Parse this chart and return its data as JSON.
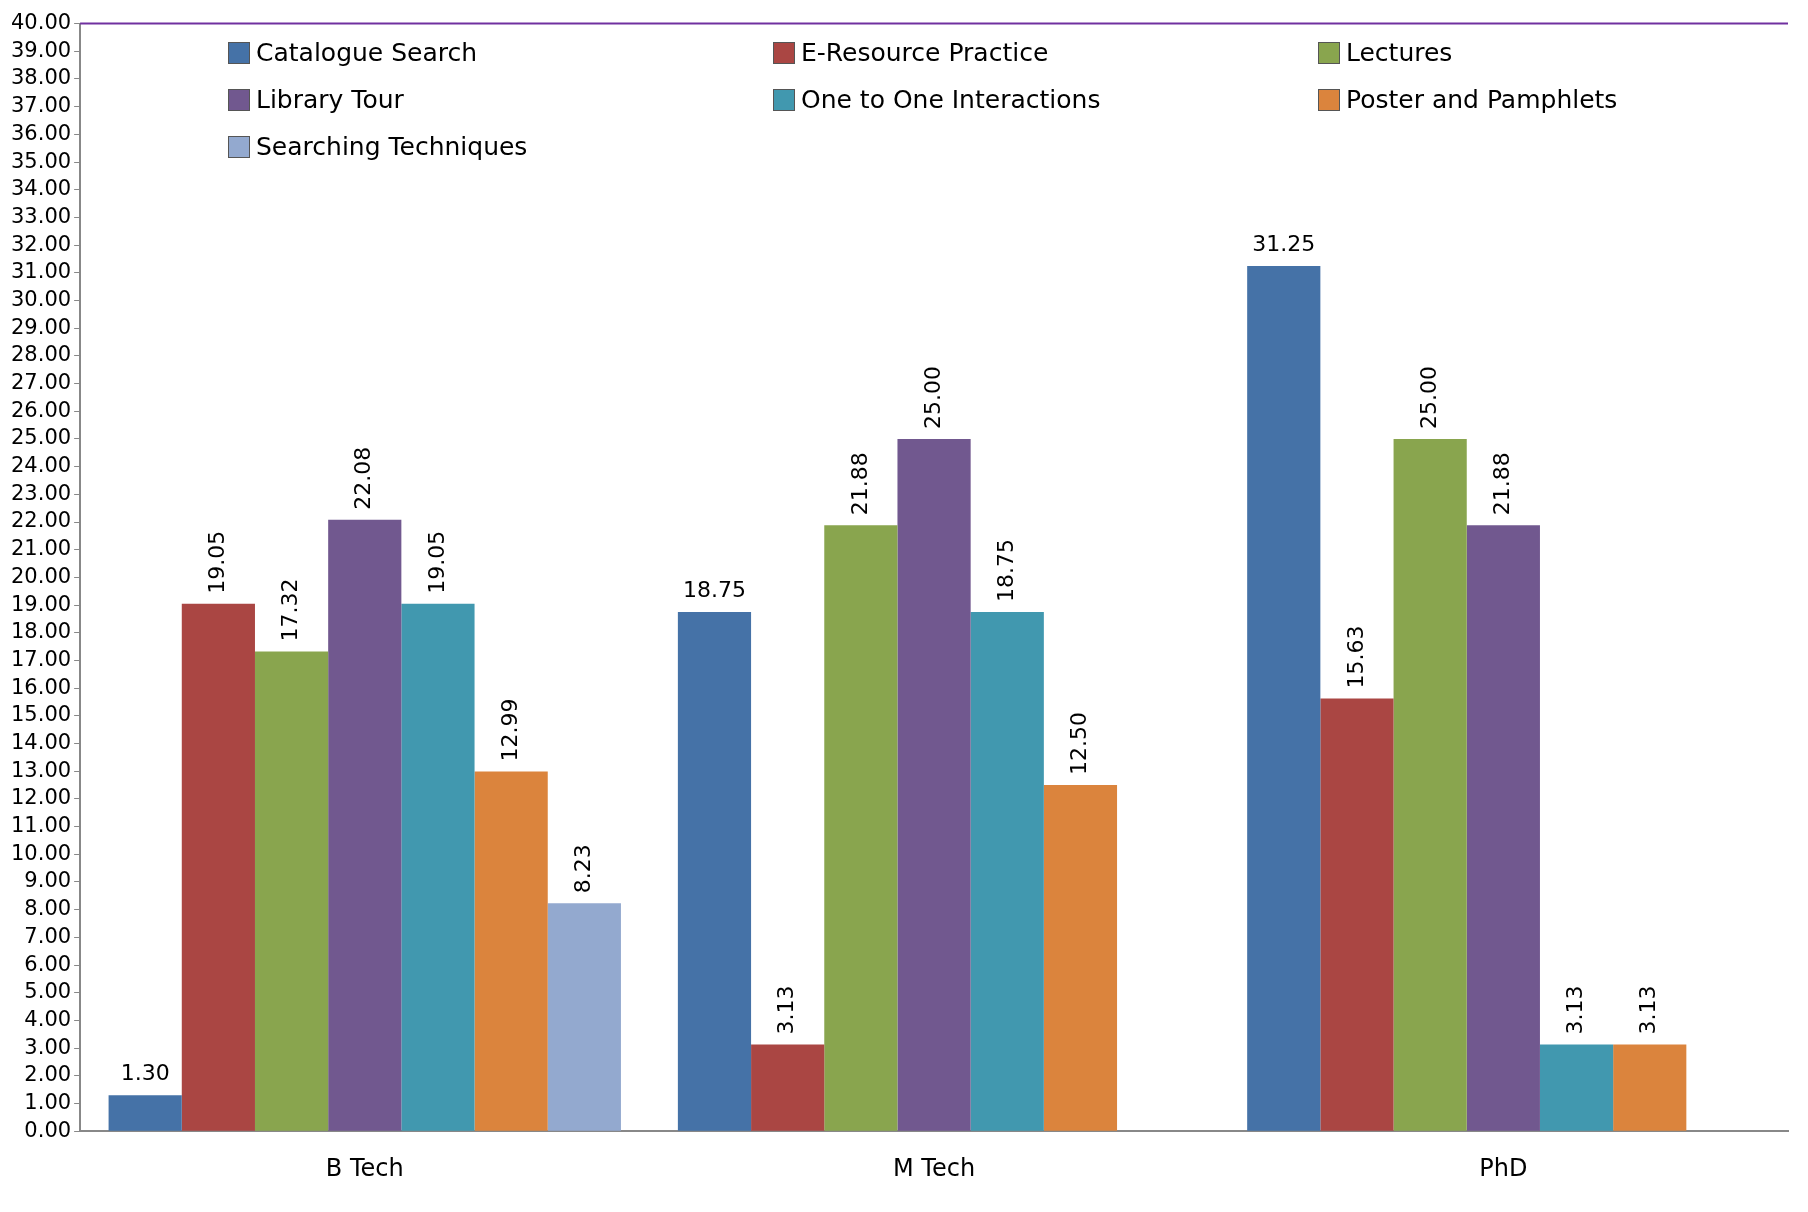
{
  "chart_data": {
    "type": "bar",
    "categories": [
      "B Tech",
      "M Tech",
      "PhD"
    ],
    "series": [
      {
        "name": "Catalogue Search",
        "color": "#4572a7",
        "values": [
          1.3,
          18.75,
          31.25
        ],
        "value_labels": [
          "1.30",
          "18.75",
          "31.25"
        ]
      },
      {
        "name": "E-Resource Practice",
        "color": "#aa4643",
        "values": [
          19.05,
          3.13,
          15.63
        ],
        "value_labels": [
          "19.05",
          "3.13",
          "15.63"
        ]
      },
      {
        "name": "Lectures",
        "color": "#89a54e",
        "values": [
          17.32,
          21.88,
          25.0
        ],
        "value_labels": [
          "17.32",
          "21.88",
          "25.00"
        ]
      },
      {
        "name": "Library Tour",
        "color": "#71588f",
        "values": [
          22.08,
          25.0,
          21.88
        ],
        "value_labels": [
          "22.08",
          "25.00",
          "21.88"
        ]
      },
      {
        "name": "One to One Interactions",
        "color": "#4198af",
        "values": [
          19.05,
          18.75,
          3.13
        ],
        "value_labels": [
          "19.05",
          "18.75",
          "3.13"
        ]
      },
      {
        "name": "Poster and Pamphlets",
        "color": "#db843d",
        "values": [
          12.99,
          12.5,
          3.13
        ],
        "value_labels": [
          "12.99",
          "12.50",
          "3.13"
        ]
      },
      {
        "name": "Searching Techniques",
        "color": "#93a9cf",
        "values": [
          8.23,
          null,
          null
        ],
        "value_labels": [
          "8.23",
          null,
          null
        ]
      }
    ],
    "ylim": [
      0,
      40
    ],
    "yticks": [
      {
        "value": 0,
        "label": "0.00"
      },
      {
        "value": 1,
        "label": "1.00"
      },
      {
        "value": 2,
        "label": "2.00"
      },
      {
        "value": 3,
        "label": "3.00"
      },
      {
        "value": 4,
        "label": "4.00"
      },
      {
        "value": 5,
        "label": "5.00"
      },
      {
        "value": 6,
        "label": "6.00"
      },
      {
        "value": 7,
        "label": "7.00"
      },
      {
        "value": 8,
        "label": "8.00"
      },
      {
        "value": 9,
        "label": "9.00"
      },
      {
        "value": 10,
        "label": "10.00"
      },
      {
        "value": 11,
        "label": "11.00"
      },
      {
        "value": 12,
        "label": "12.00"
      },
      {
        "value": 13,
        "label": "13.00"
      },
      {
        "value": 14,
        "label": "14.00"
      },
      {
        "value": 15,
        "label": "15.00"
      },
      {
        "value": 16,
        "label": "16.00"
      },
      {
        "value": 17,
        "label": "17.00"
      },
      {
        "value": 18,
        "label": "18.00"
      },
      {
        "value": 19,
        "label": "19.00"
      },
      {
        "value": 20,
        "label": "20.00"
      },
      {
        "value": 21,
        "label": "21.00"
      },
      {
        "value": 22,
        "label": "22.00"
      },
      {
        "value": 23,
        "label": "23.00"
      },
      {
        "value": 24,
        "label": "24.00"
      },
      {
        "value": 25,
        "label": "25.00"
      },
      {
        "value": 26,
        "label": "26.00"
      },
      {
        "value": 27,
        "label": "27.00"
      },
      {
        "value": 28,
        "label": "28.00"
      },
      {
        "value": 29,
        "label": "29.00"
      },
      {
        "value": 30,
        "label": "30.00"
      },
      {
        "value": 31,
        "label": "31.00"
      },
      {
        "value": 32,
        "label": "32.00"
      },
      {
        "value": 33,
        "label": "33.00"
      },
      {
        "value": 34,
        "label": "34.00"
      },
      {
        "value": 35,
        "label": "35.00"
      },
      {
        "value": 36,
        "label": "36.00"
      },
      {
        "value": 37,
        "label": "37.00"
      },
      {
        "value": 38,
        "label": "38.00"
      },
      {
        "value": 39,
        "label": "39.00"
      },
      {
        "value": 40,
        "label": "40.00"
      }
    ],
    "legend": "top left",
    "grid": false
  }
}
